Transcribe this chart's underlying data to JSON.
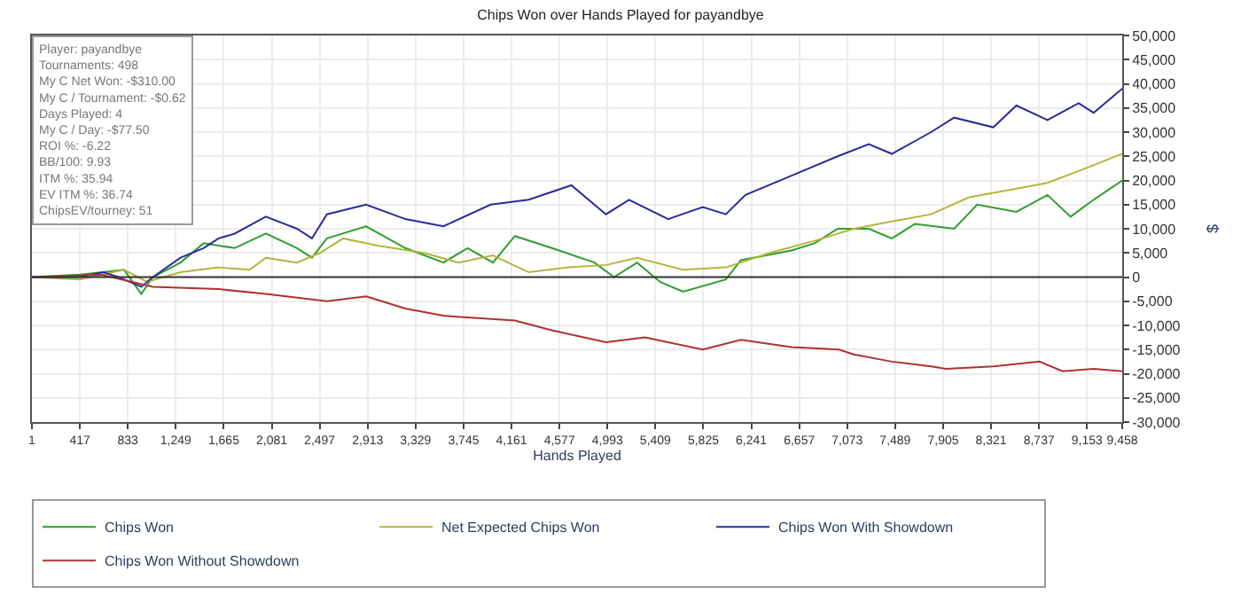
{
  "chart_data": {
    "type": "line",
    "title": "Chips Won over Hands Played for payandbye",
    "xlabel": "Hands Played",
    "ylabel": "$",
    "annotations": [
      "Player: payandbye",
      "Tournaments: 498",
      "My C Net Won: -$310.00",
      "My C / Tournament: -$0.62",
      "Days Played: 4",
      "My C / Day: -$77.50",
      "ROI %: -6.22",
      "BB/100: 9.93",
      "ITM %: 35.94",
      "EV ITM %: 36.74",
      "ChipsEV/tourney: 51"
    ],
    "series": [
      {
        "name": "Chips Won",
        "color": "#2e9e2e",
        "x": [
          1,
          417,
          800,
          950,
          1050,
          1290,
          1490,
          1760,
          2030,
          2300,
          2430,
          2560,
          2900,
          3240,
          3570,
          3780,
          4000,
          4190,
          4510,
          4880,
          5050,
          5250,
          5450,
          5650,
          6020,
          6150,
          6590,
          6790,
          6990,
          7260,
          7460,
          7660,
          8000,
          8200,
          8540,
          8810,
          9010,
          9210,
          9458
        ],
        "values": [
          0,
          500,
          1500,
          -3500,
          0,
          3000,
          7000,
          6000,
          9000,
          6000,
          4000,
          8000,
          10500,
          6000,
          3000,
          6000,
          3000,
          8500,
          6000,
          3000,
          0,
          3000,
          -1000,
          -3000,
          -500,
          3500,
          5500,
          7000,
          10000,
          10000,
          8000,
          11000,
          10000,
          15000,
          13500,
          17000,
          12500,
          16000,
          20000
        ]
      },
      {
        "name": "Net Expected Chips Won",
        "color": "#b5b53a",
        "x": [
          1,
          417,
          800,
          1000,
          1290,
          1620,
          1890,
          2030,
          2300,
          2500,
          2700,
          3000,
          3400,
          3700,
          4000,
          4310,
          4650,
          4980,
          5250,
          5650,
          6020,
          6400,
          6790,
          7130,
          7460,
          7800,
          8130,
          8470,
          8810,
          9140,
          9458
        ],
        "values": [
          0,
          -500,
          1500,
          -1000,
          1000,
          2000,
          1500,
          4000,
          3000,
          5000,
          8000,
          6500,
          5000,
          3000,
          4500,
          1000,
          2000,
          2500,
          4000,
          1500,
          2000,
          5000,
          7500,
          10000,
          11500,
          13000,
          16500,
          18000,
          19500,
          22500,
          25500
        ]
      },
      {
        "name": "Chips Won With Showdown",
        "color": "#2b2b9b",
        "x": [
          1,
          417,
          620,
          750,
          950,
          1050,
          1290,
          1490,
          1620,
          1760,
          2030,
          2300,
          2430,
          2560,
          2900,
          3240,
          3570,
          3980,
          4310,
          4680,
          4980,
          5180,
          5520,
          5820,
          6020,
          6190,
          6590,
          6990,
          7260,
          7460,
          7800,
          8000,
          8340,
          8540,
          8810,
          9080,
          9210,
          9458
        ],
        "values": [
          0,
          0,
          1000,
          0,
          -2000,
          0,
          4000,
          6000,
          8000,
          9000,
          12500,
          10000,
          8000,
          13000,
          15000,
          12000,
          10500,
          15000,
          16000,
          19000,
          13000,
          16000,
          12000,
          14500,
          13000,
          17000,
          21000,
          25000,
          27500,
          25500,
          30000,
          33000,
          31000,
          35500,
          32500,
          36000,
          34000,
          39000
        ]
      },
      {
        "name": "Chips Won Without Showdown",
        "color": "#b03030",
        "x": [
          1,
          600,
          1050,
          1620,
          2030,
          2560,
          2900,
          3240,
          3570,
          4190,
          4510,
          4980,
          5320,
          5820,
          6150,
          6590,
          7000,
          7130,
          7460,
          7800,
          7930,
          8340,
          8740,
          8940,
          9210,
          9458
        ],
        "values": [
          0,
          500,
          -2000,
          -2500,
          -3500,
          -5000,
          -4000,
          -6500,
          -8000,
          -9000,
          -11000,
          -13500,
          -12500,
          -15000,
          -13000,
          -14500,
          -15000,
          -16000,
          -17500,
          -18500,
          -19000,
          -18500,
          -17500,
          -19500,
          -19000,
          -19500
        ]
      }
    ],
    "xlim": [
      1,
      9458
    ],
    "xticks": [
      1,
      417,
      833,
      {
        "value": 1249,
        "label": "1,249"
      },
      {
        "value": 1665,
        "label": "1,665"
      },
      {
        "value": 2081,
        "label": "2,081"
      },
      {
        "value": 2497,
        "label": "2,497"
      },
      {
        "value": 2913,
        "label": "2,913"
      },
      {
        "value": 3329,
        "label": "3,329"
      },
      {
        "value": 3745,
        "label": "3,745"
      },
      {
        "value": 4161,
        "label": "4,161"
      },
      {
        "value": 4577,
        "label": "4,577"
      },
      {
        "value": 4993,
        "label": "4,993"
      },
      {
        "value": 5409,
        "label": "5,409"
      },
      {
        "value": 5825,
        "label": "5,825"
      },
      {
        "value": 6241,
        "label": "6,241"
      },
      {
        "value": 6657,
        "label": "6,657"
      },
      {
        "value": 7073,
        "label": "7,073"
      },
      {
        "value": 7489,
        "label": "7,489"
      },
      {
        "value": 7905,
        "label": "7,905"
      },
      {
        "value": 8321,
        "label": "8,321"
      },
      {
        "value": 8737,
        "label": "8,737"
      },
      {
        "value": 9153,
        "label": "9,153"
      },
      {
        "value": 9458,
        "label": "9,458"
      }
    ],
    "ylim": [
      -30000,
      50000
    ],
    "yticks": [
      {
        "value": -30000,
        "label": "-30,000"
      },
      {
        "value": -25000,
        "label": "-25,000"
      },
      {
        "value": -20000,
        "label": "-20,000"
      },
      {
        "value": -15000,
        "label": "-15,000"
      },
      {
        "value": -10000,
        "label": "-10,000"
      },
      {
        "value": -5000,
        "label": "-5,000"
      },
      0,
      {
        "value": 5000,
        "label": "5,000"
      },
      {
        "value": 10000,
        "label": "10,000"
      },
      {
        "value": 15000,
        "label": "15,000"
      },
      {
        "value": 20000,
        "label": "20,000"
      },
      {
        "value": 25000,
        "label": "25,000"
      },
      {
        "value": 30000,
        "label": "30,000"
      },
      {
        "value": 35000,
        "label": "35,000"
      },
      {
        "value": 40000,
        "label": "40,000"
      },
      {
        "value": 45000,
        "label": "45,000"
      },
      {
        "value": 50000,
        "label": "50,000"
      }
    ],
    "ref_lines": [
      {
        "axis": "y",
        "value": 0,
        "color": "#333333"
      }
    ],
    "grid": true,
    "legend": "bottom",
    "marker": "none",
    "line_style": "solid"
  }
}
